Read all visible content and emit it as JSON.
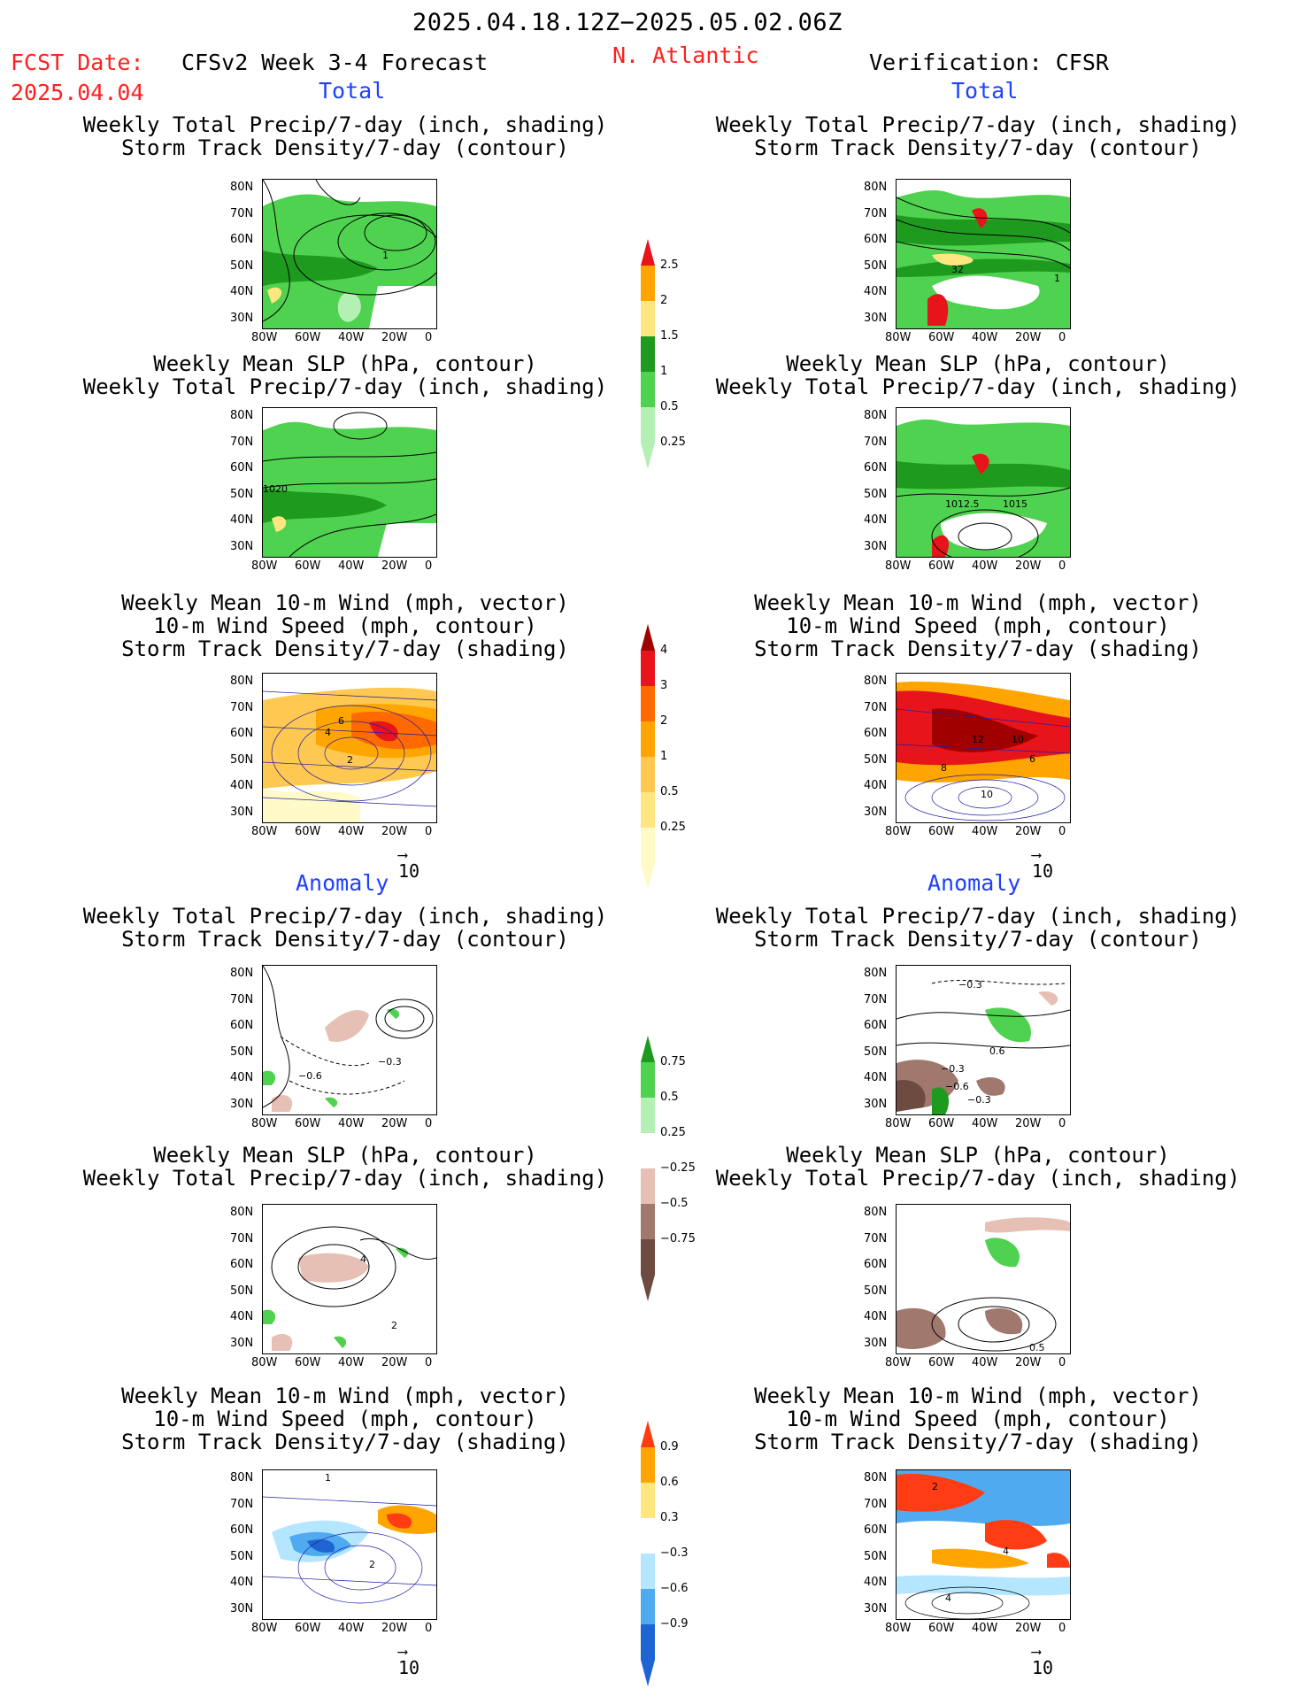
{
  "header": {
    "date_range": "2025.04.18.12Z−2025.05.02.06Z",
    "fcst_label": "FCST Date:",
    "fcst_date": "2025.04.04",
    "model": "CFSv2 Week 3-4 Forecast",
    "region": "N. Atlantic",
    "verification": "Verification: CFSR"
  },
  "sections": {
    "total": "Total",
    "anomaly": "Anomaly"
  },
  "panel_titles": {
    "precip_storm": [
      "Weekly Total Precip/7-day (inch, shading)",
      "Storm Track Density/7-day (contour)"
    ],
    "slp_precip": [
      "Weekly Mean SLP (hPa, contour)",
      "Weekly Total Precip/7-day (inch, shading)"
    ],
    "wind_storm": [
      "Weekly Mean 10-m Wind (mph, vector)",
      "10-m Wind Speed (mph, contour)",
      "Storm Track Density/7-day (shading)"
    ]
  },
  "axes": {
    "lat_ticks": [
      "80N",
      "70N",
      "60N",
      "50N",
      "40N",
      "30N"
    ],
    "lon_ticks": [
      "80W",
      "60W",
      "40W",
      "20W",
      "0"
    ]
  },
  "vector_ref": "10",
  "colorbars": {
    "precip_total": {
      "labels": [
        "2.5",
        "2",
        "1.5",
        "1",
        "0.5",
        "0.25"
      ],
      "colors": [
        "#e8141b",
        "#ffa500",
        "#ffe680",
        "#1e9a1e",
        "#4fd24f",
        "#b4f0b4"
      ]
    },
    "storm_total": {
      "labels": [
        "4",
        "3",
        "2",
        "1",
        "0.5",
        "0.25"
      ],
      "colors": [
        "#a00000",
        "#e8141b",
        "#ff6a00",
        "#ffa500",
        "#ffc850",
        "#ffe680",
        "#fffac8"
      ]
    },
    "precip_anom": {
      "labels": [
        "0.75",
        "0.5",
        "0.25",
        "−0.25",
        "−0.5",
        "−0.75"
      ],
      "colors": [
        "#1e9a1e",
        "#4fd24f",
        "#b4f0b4",
        "#ffffff",
        "#e6c0b4",
        "#a0786e",
        "#6e4b40"
      ]
    },
    "storm_anom": {
      "labels": [
        "0.9",
        "0.6",
        "0.3",
        "−0.3",
        "−0.6",
        "−0.9"
      ],
      "colors": [
        "#ff3c14",
        "#ffa500",
        "#ffe680",
        "#ffffff",
        "#b4e6ff",
        "#50aaf0",
        "#1e64d2"
      ]
    },
    "contour_labels": {
      "fc1": "1",
      "vc1": "32",
      "vc1b": "1",
      "fc2": "1020",
      "vc2a": "1012.5",
      "vc2b": "1015",
      "fc3a": "6",
      "fc3b": "4",
      "fc3c": "2",
      "vc3a": "12",
      "vc3b": "10",
      "vc3c": "8",
      "vc3d": "6",
      "vc3e": "10",
      "fa1": "−0.6",
      "fa1b": "−0.3",
      "va1a": "−0.3",
      "va1b": "0.6",
      "va1c": "−0.3",
      "va1d": "−0.6",
      "va1e": "−0.3",
      "fa2": "4",
      "fa2b": "2",
      "va2": "0.5",
      "fa3": "1",
      "fa3b": "2",
      "va3a": "2",
      "va3b": "4",
      "va3c": "4"
    }
  }
}
